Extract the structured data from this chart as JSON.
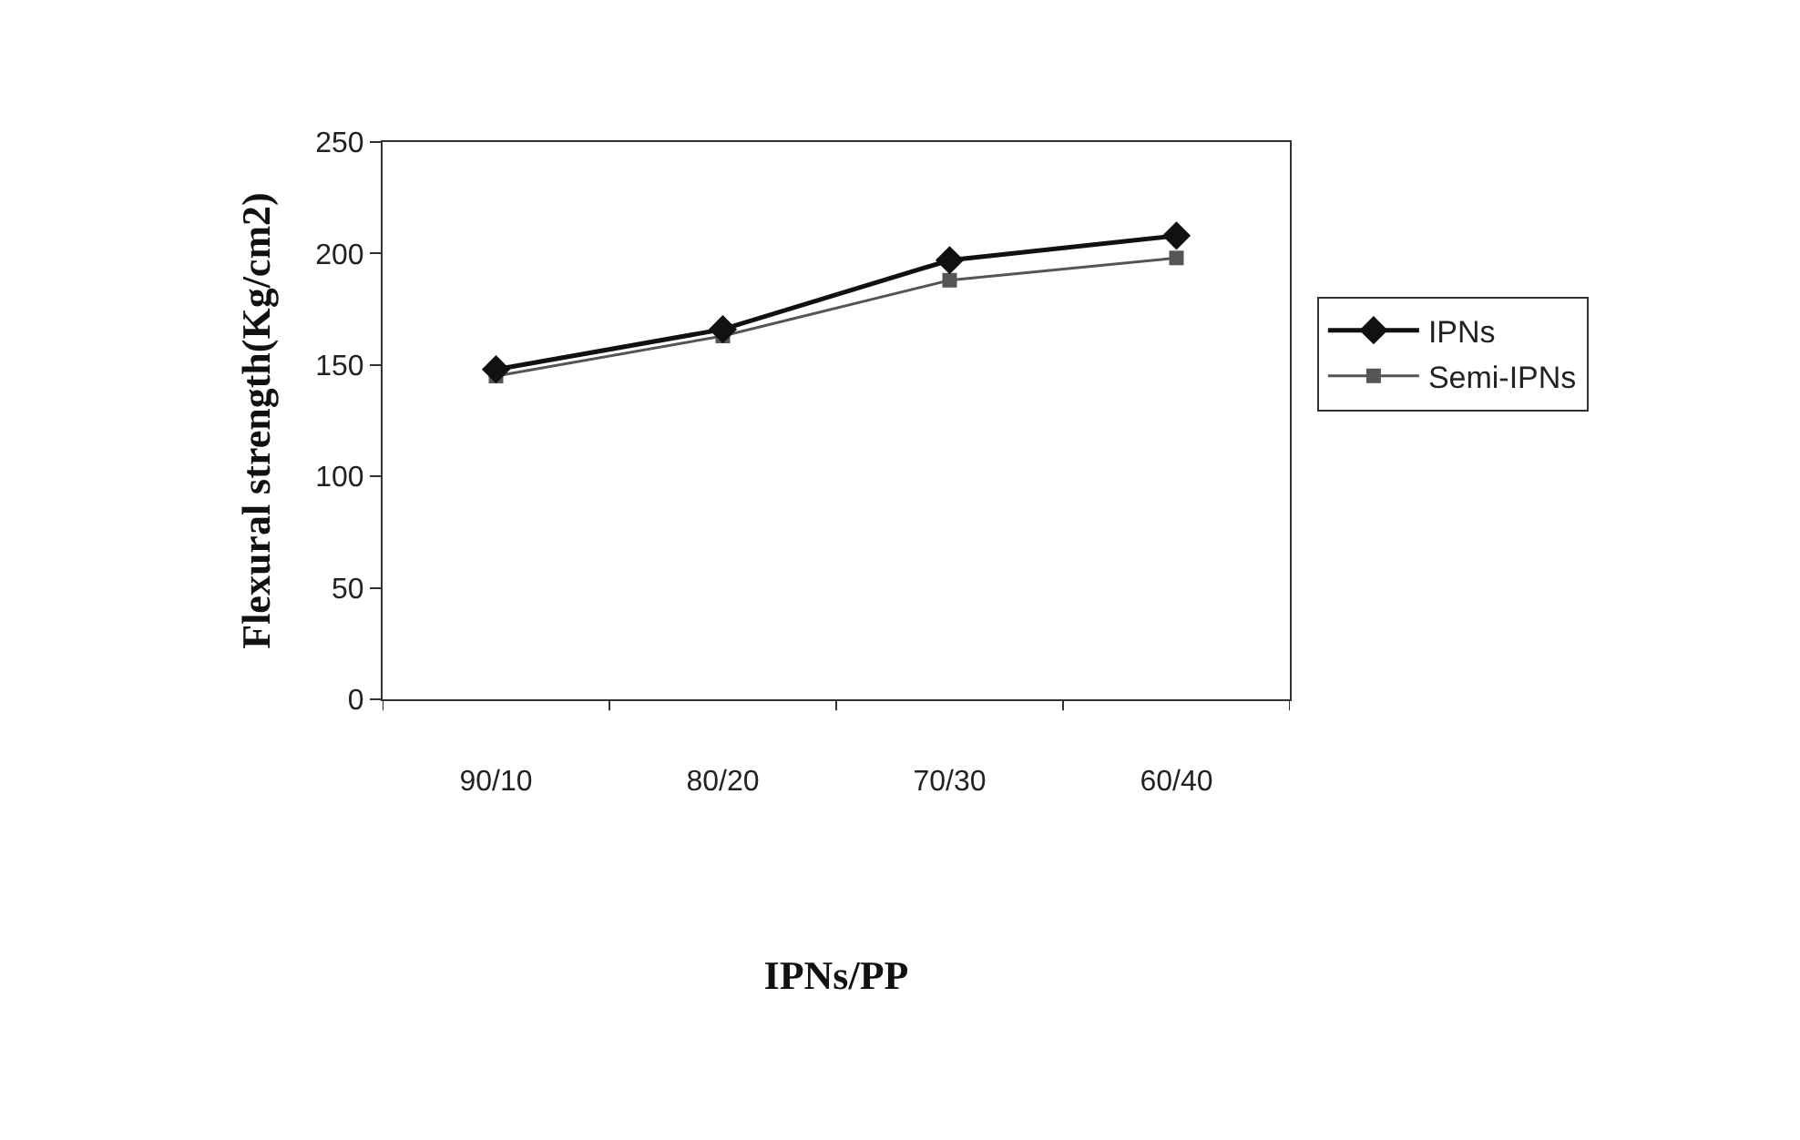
{
  "chart_data": {
    "type": "line",
    "xlabel": "IPNs/PP",
    "ylabel": "Flexural strength(Kg/cm2)",
    "categories": [
      "90/10",
      "80/20",
      "70/30",
      "60/40"
    ],
    "series": [
      {
        "name": "IPNs",
        "color": "#111111",
        "values": [
          148,
          166,
          197,
          208
        ],
        "marker": "diamond"
      },
      {
        "name": "Semi-IPNs",
        "color": "#555555",
        "values": [
          145,
          163,
          188,
          198
        ],
        "marker": "square"
      }
    ],
    "ylim": [
      0,
      250
    ],
    "yticks": [
      0,
      50,
      100,
      150,
      200,
      250
    ],
    "grid": false,
    "legend": "right"
  }
}
